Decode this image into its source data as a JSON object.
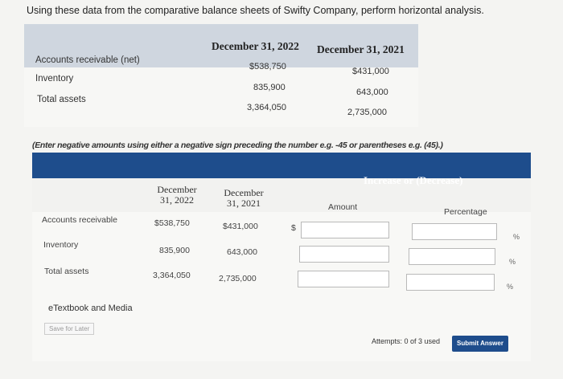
{
  "instruction": "Using these data from the comparative balance sheets of Swifty Company, perform horizontal analysis.",
  "balance": {
    "col_2022": "December 31, 2022",
    "col_2021": "December 31, 2021",
    "rows": [
      {
        "label": "Accounts receivable (net)",
        "v2022": "$538,750",
        "v2021": "$431,000"
      },
      {
        "label": "Inventory",
        "v2022": "835,900",
        "v2021": "643,000"
      },
      {
        "label": "Total assets",
        "v2022": "3,364,050",
        "v2021": "2,735,000"
      }
    ]
  },
  "note": "(Enter negative amounts using either a negative sign preceding the number e.g. -45 or parentheses e.g. (45).)",
  "answer": {
    "header": "Increase or (Decrease)",
    "col_dec2022_l1": "December",
    "col_dec2022_l2": "31, 2022",
    "col_dec2021_l1": "December",
    "col_dec2021_l2": "31, 2021",
    "col_amount": "Amount",
    "col_percentage": "Percentage",
    "dollar": "$",
    "pct_sign": "%",
    "rows": [
      {
        "label": "Accounts receivable",
        "v2022": "$538,750",
        "v2021": "$431,000",
        "amount": "",
        "percent": ""
      },
      {
        "label": "Inventory",
        "v2022": "835,900",
        "v2021": "643,000",
        "amount": "",
        "percent": ""
      },
      {
        "label": "Total assets",
        "v2022": "3,364,050",
        "v2021": "2,735,000",
        "amount": "",
        "percent": ""
      }
    ]
  },
  "etextbook": "eTextbook and Media",
  "save_later": "Save for Later",
  "attempts": "Attempts: 0 of 3 used",
  "submit": "Submit Answer",
  "colors": {
    "accent": "#1e4d8c",
    "table_header": "#cfd6df"
  }
}
